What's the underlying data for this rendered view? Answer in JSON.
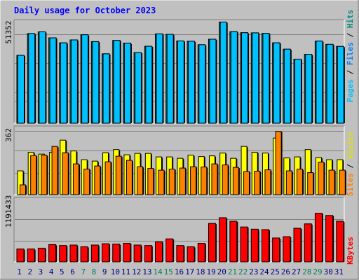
{
  "chart_data": [
    {
      "type": "bar",
      "title": "Daily usage for October 2023",
      "categories": [
        "1",
        "2",
        "3",
        "4",
        "5",
        "6",
        "7",
        "8",
        "9",
        "10",
        "11",
        "12",
        "13",
        "14",
        "15",
        "16",
        "17",
        "18",
        "19",
        "20",
        "21",
        "22",
        "23",
        "24",
        "25",
        "26",
        "27",
        "28",
        "29",
        "30",
        "31"
      ],
      "weekend_days": [
        "7",
        "8",
        "14",
        "15",
        "21",
        "22",
        "28",
        "29"
      ],
      "ylabel_parts": [
        "Pages",
        "Files",
        "Hits"
      ],
      "ytick": "51352",
      "ylim": [
        0,
        59500
      ],
      "series": [
        {
          "name": "Pages",
          "values": [
            0,
            0,
            0,
            0,
            0,
            0,
            0,
            0,
            0,
            0,
            0,
            0,
            0,
            0,
            0,
            0,
            0,
            0,
            0,
            0,
            0,
            0,
            0,
            0,
            0,
            0,
            0,
            0,
            0,
            0,
            0
          ]
        },
        {
          "name": "Files",
          "values": [
            39500,
            52200,
            53200,
            49700,
            46800,
            48500,
            51500,
            47500,
            40400,
            48200,
            46600,
            41100,
            44800,
            52000,
            51700,
            47900,
            47700,
            45700,
            48900,
            58900,
            53300,
            52700,
            52600,
            52300,
            46800,
            43100,
            37300,
            40100,
            47800,
            45900,
            44700
          ]
        },
        {
          "name": "Hits",
          "values": [
            39500,
            52200,
            53200,
            49700,
            46800,
            48500,
            51500,
            47500,
            40400,
            48200,
            46600,
            41100,
            44800,
            52000,
            51700,
            47900,
            47700,
            45700,
            48900,
            58900,
            53300,
            52700,
            52600,
            52300,
            46800,
            43100,
            37300,
            40100,
            47800,
            45900,
            44700
          ]
        }
      ],
      "colors": {
        "Pages": "#00c0ff",
        "Files": "#00c0ff",
        "Hits": "#008a80"
      }
    },
    {
      "type": "bar",
      "categories": [
        "1",
        "2",
        "3",
        "4",
        "5",
        "6",
        "7",
        "8",
        "9",
        "10",
        "11",
        "12",
        "13",
        "14",
        "15",
        "16",
        "17",
        "18",
        "19",
        "20",
        "21",
        "22",
        "23",
        "24",
        "25",
        "26",
        "27",
        "28",
        "29",
        "30",
        "31"
      ],
      "ylabel_parts": [
        "Sites",
        "Visits"
      ],
      "ytick": "362",
      "ylim": [
        0,
        385
      ],
      "series": [
        {
          "name": "Visits",
          "values": [
            136,
            242,
            232,
            242,
            312,
            250,
            200,
            192,
            240,
            258,
            228,
            236,
            236,
            216,
            216,
            208,
            226,
            218,
            222,
            238,
            208,
            276,
            242,
            238,
            324,
            210,
            216,
            258,
            212,
            200,
            200
          ]
        },
        {
          "name": "Sites",
          "values": [
            56,
            224,
            226,
            276,
            240,
            176,
            146,
            164,
            188,
            220,
            196,
            160,
            150,
            140,
            146,
            152,
            160,
            158,
            176,
            170,
            156,
            132,
            134,
            142,
            362,
            136,
            146,
            126,
            186,
            140,
            140
          ]
        }
      ],
      "colors": {
        "Visits": "#ffff00",
        "Sites": "#ff8000"
      }
    },
    {
      "type": "bar",
      "categories": [
        "1",
        "2",
        "3",
        "4",
        "5",
        "6",
        "7",
        "8",
        "9",
        "10",
        "11",
        "12",
        "13",
        "14",
        "15",
        "16",
        "17",
        "18",
        "19",
        "20",
        "21",
        "22",
        "23",
        "24",
        "25",
        "26",
        "27",
        "28",
        "29",
        "30",
        "31"
      ],
      "ylabel": "KBytes",
      "ytick": "1191433",
      "ylim": [
        0,
        1427000
      ],
      "series": [
        {
          "name": "KBytes",
          "values": [
            290000,
            290000,
            310000,
            390000,
            370000,
            380000,
            340000,
            380000,
            410000,
            400000,
            420000,
            380000,
            370000,
            450000,
            520000,
            370000,
            340000,
            420000,
            870000,
            1000000,
            920000,
            790000,
            740000,
            730000,
            540000,
            570000,
            760000,
            860000,
            1100000,
            1050000,
            920000
          ]
        }
      ],
      "colors": {
        "KBytes": "#ff0000"
      }
    }
  ],
  "colors": {
    "frame": "#c0c0c0",
    "title": "#0000ff",
    "weekday_label": "#000080",
    "weekend_label": "#00805c",
    "grid": "#808080",
    "separator": "#000000"
  }
}
